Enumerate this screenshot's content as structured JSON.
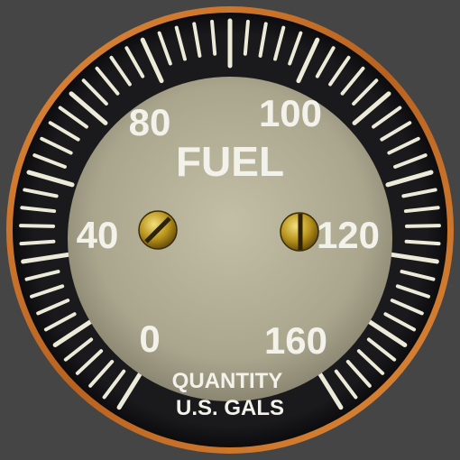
{
  "gauge": {
    "title": "FUEL",
    "caption_line1": "QUANTITY",
    "caption_line2": "U.S. GALS",
    "scale_labels": [
      "0",
      "40",
      "80",
      "100",
      "120",
      "160"
    ],
    "colors": {
      "background": "#454545",
      "bezel_ring": "#c8702a",
      "tick": "#ecead8",
      "dial_face": "#b4b098",
      "label": "#f2f2ea",
      "screw": "#b8931c"
    },
    "icons": [
      "left-screw-icon",
      "right-screw-icon"
    ]
  }
}
